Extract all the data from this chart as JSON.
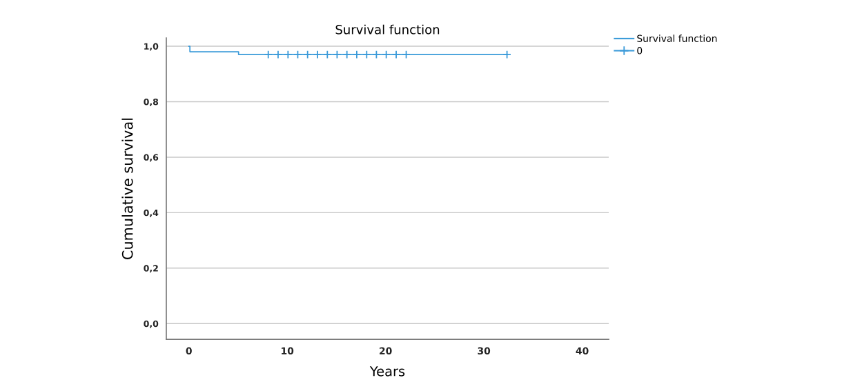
{
  "chart_data": {
    "type": "step",
    "title": "Survival function",
    "xlabel": "Years",
    "ylabel": "Cumulative survival",
    "series": [
      {
        "name": "Survival function",
        "color": "#3a9ad9",
        "x": [
          0,
          0.1,
          5.05,
          32.4
        ],
        "values": [
          1.0,
          0.98,
          0.97,
          0.97
        ],
        "marker": "none",
        "line_style": "solid"
      },
      {
        "name": "0",
        "type": "scatter",
        "color": "#3a9ad9",
        "x": [
          8.07,
          9.07,
          10.08,
          11.07,
          12.07,
          13.07,
          14.08,
          15.07,
          16.07,
          17.07,
          18.08,
          19.07,
          20.07,
          21.08,
          22.1,
          32.35
        ],
        "values": [
          0.97,
          0.97,
          0.97,
          0.97,
          0.97,
          0.97,
          0.97,
          0.97,
          0.97,
          0.97,
          0.97,
          0.97,
          0.97,
          0.97,
          0.97,
          0.97
        ],
        "marker": "cross"
      }
    ],
    "xlim": [
      -2.3,
      42.7
    ],
    "xticks": [
      0,
      10,
      20,
      30,
      40
    ],
    "ylim": [
      -0.057,
      1.03
    ],
    "yticks": [
      {
        "value": 0,
        "label": "0,0"
      },
      {
        "value": 0.2,
        "label": "0,2"
      },
      {
        "value": 0.4,
        "label": "0,4"
      },
      {
        "value": 0.6,
        "label": "0,6"
      },
      {
        "value": 0.8,
        "label": "0,8"
      },
      {
        "value": 1.0,
        "label": "1,0"
      }
    ],
    "grid": "y",
    "legend": "top right"
  }
}
